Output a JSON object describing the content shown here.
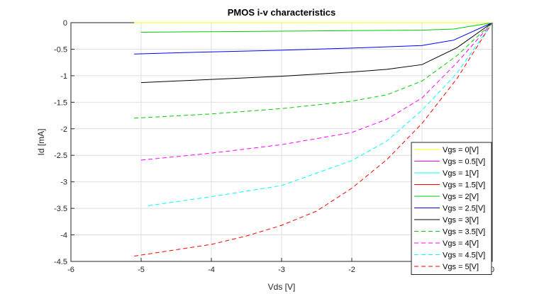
{
  "chart_data": {
    "type": "line",
    "title": "PMOS i-v characteristics",
    "xlabel": "Vds [V]",
    "ylabel": "Id [mA]",
    "xlim": [
      -6,
      0
    ],
    "ylim": [
      -4.5,
      0
    ],
    "xticks": [
      "-6",
      "-5",
      "-4",
      "-3",
      "-2",
      "-1",
      "0"
    ],
    "yticks": [
      "0",
      "-0.5",
      "-1",
      "-1.5",
      "-2",
      "-2.5",
      "-3",
      "-3.5",
      "-4",
      "-4.5"
    ],
    "grid": true,
    "legend_position": "bottom-right",
    "series": [
      {
        "name": "Vgs = 0[V]",
        "color": "#ffff00",
        "style": "solid",
        "x": [
          -5.1,
          0
        ],
        "y": [
          0,
          0
        ]
      },
      {
        "name": "Vgs = 0.5[V]",
        "color": "#ff00ff",
        "style": "solid",
        "x": [
          -5.1,
          0
        ],
        "y": [
          0,
          0
        ]
      },
      {
        "name": "Vgs = 1[V]",
        "color": "#00ffff",
        "style": "solid",
        "x": [
          -5.1,
          0
        ],
        "y": [
          0,
          0
        ]
      },
      {
        "name": "Vgs = 1.5[V]",
        "color": "#ff0000",
        "style": "solid",
        "x": [
          -5.1,
          0
        ],
        "y": [
          0,
          0
        ]
      },
      {
        "name": "Vgs = 2[V]",
        "color": "#00cc00",
        "style": "solid",
        "x": [
          -5.0,
          -4.0,
          -3.0,
          -2.0,
          -1.0,
          -0.55,
          0
        ],
        "y": [
          -0.18,
          -0.17,
          -0.16,
          -0.15,
          -0.14,
          -0.12,
          0
        ]
      },
      {
        "name": "Vgs = 2.5[V]",
        "color": "#0000ff",
        "style": "solid",
        "x": [
          -5.1,
          -4.0,
          -3.0,
          -2.0,
          -1.0,
          -0.55,
          0
        ],
        "y": [
          -0.59,
          -0.55,
          -0.52,
          -0.48,
          -0.43,
          -0.33,
          0
        ]
      },
      {
        "name": "Vgs = 3[V]",
        "color": "#000000",
        "style": "solid",
        "x": [
          -5.0,
          -4.0,
          -3.0,
          -2.0,
          -1.5,
          -1.0,
          -0.5,
          0
        ],
        "y": [
          -1.13,
          -1.07,
          -1.01,
          -0.93,
          -0.88,
          -0.79,
          -0.47,
          0
        ]
      },
      {
        "name": "Vgs = 3.5[V]",
        "color": "#00cc00",
        "style": "dashed",
        "x": [
          -5.1,
          -4.0,
          -3.0,
          -2.0,
          -1.5,
          -1.0,
          -0.5,
          0
        ],
        "y": [
          -1.8,
          -1.72,
          -1.62,
          -1.48,
          -1.36,
          -1.1,
          -0.62,
          0
        ]
      },
      {
        "name": "Vgs = 4[V]",
        "color": "#ff00ff",
        "style": "dashed",
        "x": [
          -5.0,
          -4.0,
          -3.0,
          -2.0,
          -1.5,
          -1.0,
          -0.5,
          0
        ],
        "y": [
          -2.59,
          -2.46,
          -2.3,
          -2.07,
          -1.82,
          -1.42,
          -0.75,
          0
        ]
      },
      {
        "name": "Vgs = 4.5[V]",
        "color": "#00ffff",
        "style": "dashed",
        "x": [
          -4.9,
          -4.0,
          -3.0,
          -2.0,
          -1.5,
          -1.0,
          -0.5,
          0
        ],
        "y": [
          -3.45,
          -3.28,
          -3.07,
          -2.6,
          -2.23,
          -1.65,
          -0.95,
          0
        ]
      },
      {
        "name": "Vgs = 5[V]",
        "color": "#ff0000",
        "style": "dashed",
        "x": [
          -5.1,
          -4.0,
          -3.5,
          -3.0,
          -2.5,
          -2.0,
          -1.5,
          -1.0,
          -0.5,
          0
        ],
        "y": [
          -4.4,
          -4.18,
          -4.02,
          -3.82,
          -3.55,
          -3.12,
          -2.58,
          -1.9,
          -1.05,
          0
        ]
      }
    ]
  }
}
